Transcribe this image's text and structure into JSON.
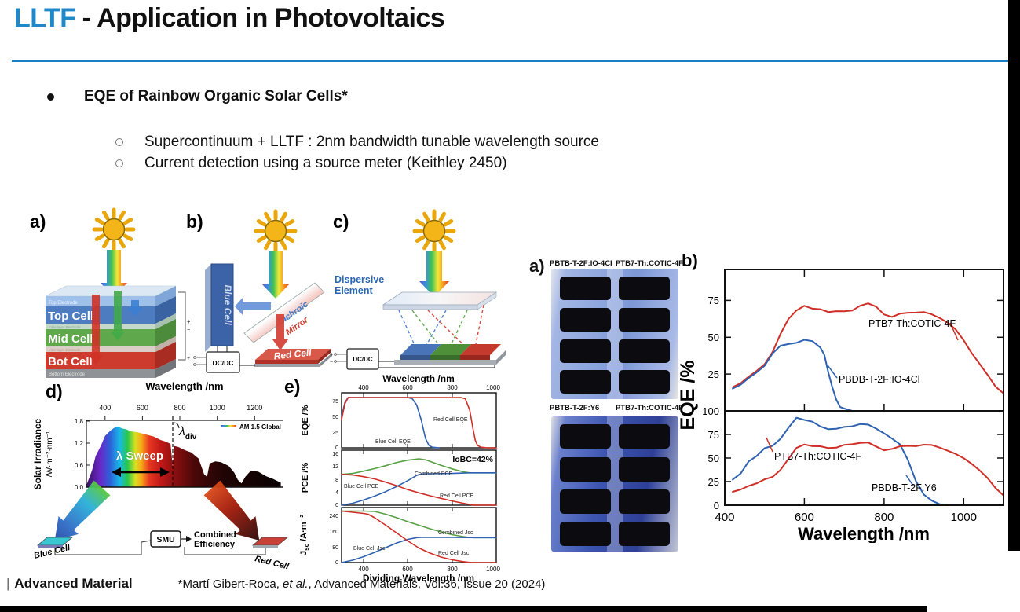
{
  "title": {
    "highlight": "LLTF",
    "rest": "- Application in Photovoltaics"
  },
  "bullets": {
    "main": "EQE of Rainbow Organic Solar Cells*",
    "sub1": "Supercontinuum + LLTF : 2nm bandwidth tunable wavelength source",
    "sub2": "Current detection using  a source meter (Keithley 2450)"
  },
  "fig_a": {
    "label": "a)",
    "layers": {
      "top_electrode": "Top Electrode",
      "top_cell": "Top Cell",
      "inter1": "Inter-layer Electrode",
      "mid_cell": "Mid Cell",
      "inter2": "Inter-layer Electrode",
      "bot_cell": "Bot Cell",
      "bottom_electrode": "Bottom Electrode"
    },
    "plus": "+",
    "minus": "−"
  },
  "fig_b": {
    "label": "b)",
    "blue_cell": "Blue Cell",
    "red_cell": "Red Cell",
    "dichroic": "Dichroic",
    "mirror": "Mirror",
    "dcdc": "DC/DC",
    "plus": "+",
    "minus": "−"
  },
  "fig_c": {
    "label": "c)",
    "dispersive_line1": "Dispersive",
    "dispersive_line2": "Element",
    "dcdc": "DC/DC",
    "plus": "+",
    "minus": "−"
  },
  "fig_d": {
    "label": "d)",
    "xlabel": "Wavelength /nm",
    "ylabel_line1": "Solar Irradiance",
    "ylabel_line2": "/W·m⁻²·nm⁻¹",
    "xticks": [
      "400",
      "600",
      "800",
      "1000",
      "1200"
    ],
    "yticks": [
      "1.8",
      "1.2",
      "0.6",
      "0.0"
    ],
    "legend": "AM 1.5 Global",
    "lambda": "λ",
    "div_sub": "div",
    "sweep": "λ Sweep",
    "smu": "SMU",
    "combined_line1": "Combined",
    "combined_line2": "Efficiency",
    "blue_cell": "Blue Cell",
    "red_cell": "Red Cell"
  },
  "fig_e": {
    "label": "e)",
    "top_xlabel": "Wavelength /nm",
    "bottom_xlabel": "Dividing Wavelength /nm",
    "xticks": [
      "400",
      "600",
      "800",
      "1000"
    ],
    "p1": {
      "ylabel": "EQE /%",
      "yticks": [
        "75",
        "50",
        "25",
        "0"
      ],
      "label_blue": "Blue Cell EQE",
      "label_red": "Red Cell EQE"
    },
    "p2": {
      "ylabel": "PCE /%",
      "yticks": [
        "16",
        "12",
        "8",
        "4",
        "0"
      ],
      "iobc": "IoBC=42%",
      "label_green": "Combined PCE",
      "label_blue": "Blue Cell PCE",
      "label_red": "Red Cell PCE"
    },
    "p3": {
      "ylabel_main": "J",
      "ylabel_sub": "sc",
      "ylabel_rest": " /A·m⁻²",
      "yticks": [
        "240",
        "160",
        "80",
        "0"
      ],
      "label_green": "Combined Jsc",
      "label_blue": "Blue Cell Jsc",
      "label_red": "Red Cell Jsc"
    }
  },
  "photos": {
    "label": "a)",
    "row1_left": "PBTB-T-2F:IO-4Cl",
    "row1_right": "PTB7-Th:COTIC-4F",
    "row2_left": "PBTB-T-2F:Y6",
    "row2_right": "PTB7-Th:COTIC-4F"
  },
  "eqe_chart": {
    "label": "b)",
    "ylabel": "EQE /%",
    "xlabel": "Wavelength /nm",
    "xticks": [
      "400",
      "600",
      "800",
      "1000"
    ],
    "yticks_top": [
      "75",
      "50",
      "25"
    ],
    "yticks_bottom": [
      "100",
      "75",
      "50",
      "25",
      "0"
    ],
    "label_top_red": "PTB7-Th:COTIC-4F",
    "label_top_blue": "PBDB-T-2F:IO-4Cl",
    "label_bottom_red": "PTB7-Th:COTIC-4F",
    "label_bottom_blue": "PBDB-T-2F:Y6"
  },
  "footer": {
    "pipe": "|",
    "brand": "Advanced Material",
    "cite_pre": "*Martí Gibert-Roca, ",
    "cite_etal": "et al.",
    "cite_post": ", Advanced Materials, Vol.36, Issue 20 (2024)"
  },
  "colors": {
    "accent": "#1f88c9",
    "curve_red": "#d02f27",
    "curve_blue": "#2f62b0",
    "curve_green": "#58a044"
  },
  "chart_data": [
    {
      "id": "eqe_top",
      "type": "line",
      "xlabel": "Wavelength /nm",
      "ylabel": "EQE /%",
      "xlim": [
        400,
        1100
      ],
      "ylim": [
        0,
        96
      ],
      "series": [
        {
          "name": "PTB7-Th:COTIC-4F",
          "color": "#d02f27",
          "x": [
            420,
            440,
            460,
            480,
            500,
            520,
            540,
            560,
            580,
            600,
            620,
            640,
            660,
            680,
            700,
            720,
            740,
            760,
            780,
            800,
            820,
            840,
            860,
            880,
            900,
            920,
            940,
            960,
            980,
            1000,
            1020,
            1040,
            1060,
            1080,
            1100
          ],
          "y": [
            16,
            19,
            23,
            27,
            32,
            40,
            52,
            63,
            69,
            71,
            69,
            70,
            68,
            67,
            67,
            69,
            72,
            72,
            70,
            66,
            64,
            65,
            66,
            67,
            67,
            65,
            63,
            60,
            55,
            48,
            40,
            32,
            24,
            17,
            13
          ]
        },
        {
          "name": "PBDB-T-2F:IO-4Cl",
          "color": "#2f62b0",
          "x": [
            420,
            440,
            460,
            480,
            500,
            520,
            540,
            560,
            580,
            600,
            620,
            640,
            650,
            660,
            670,
            680,
            690,
            700,
            720
          ],
          "y": [
            15,
            18,
            22,
            26,
            31,
            39,
            44,
            46,
            47,
            48,
            47,
            44,
            38,
            27,
            16,
            7,
            3,
            1,
            0
          ]
        }
      ]
    },
    {
      "id": "eqe_bottom",
      "type": "line",
      "xlabel": "Wavelength /nm",
      "ylabel": "EQE /%",
      "xlim": [
        400,
        1100
      ],
      "ylim": [
        0,
        105
      ],
      "series": [
        {
          "name": "PBDB-T-2F:Y6",
          "color": "#2f62b0",
          "x": [
            420,
            440,
            460,
            480,
            500,
            520,
            540,
            560,
            580,
            600,
            620,
            640,
            660,
            680,
            700,
            720,
            740,
            760,
            780,
            800,
            820,
            840,
            860,
            880,
            900,
            920,
            940,
            960,
            1000,
            1050,
            1100
          ],
          "y": [
            27,
            34,
            46,
            52,
            61,
            63,
            70,
            83,
            94,
            90,
            88,
            85,
            82,
            80,
            82,
            85,
            87,
            84,
            80,
            77,
            71,
            63,
            47,
            26,
            11,
            4,
            1,
            0,
            0,
            0,
            0
          ]
        },
        {
          "name": "PTB7-Th:COTIC-4F",
          "color": "#d02f27",
          "x": [
            420,
            440,
            460,
            480,
            500,
            520,
            540,
            560,
            580,
            600,
            620,
            640,
            660,
            680,
            700,
            720,
            740,
            760,
            780,
            800,
            820,
            840,
            860,
            880,
            900,
            920,
            940,
            960,
            980,
            1000,
            1020,
            1040,
            1060,
            1080,
            1100
          ],
          "y": [
            14,
            17,
            20,
            23,
            28,
            30,
            37,
            50,
            62,
            64,
            62,
            64,
            62,
            60,
            63,
            66,
            67,
            65,
            61,
            59,
            60,
            61,
            62,
            63,
            64,
            63,
            61,
            58,
            54,
            50,
            45,
            37,
            28,
            19,
            12
          ]
        }
      ]
    },
    {
      "id": "fig_e_eqe",
      "type": "line",
      "xlabel": "Dividing Wavelength /nm",
      "ylabel": "EQE /%",
      "xlim": [
        300,
        1000
      ],
      "ylim": [
        0,
        87.5
      ],
      "series": [
        {
          "name": "Blue Cell EQE",
          "color": "#2f62b0",
          "x": [
            300,
            315,
            330,
            380,
            450,
            520,
            600,
            620,
            640,
            660,
            680,
            695,
            710,
            740
          ],
          "y": [
            50,
            72,
            80,
            80,
            80,
            80,
            80,
            78,
            68,
            45,
            15,
            4,
            1,
            0
          ]
        },
        {
          "name": "Red Cell EQE",
          "color": "#d02f27",
          "x": [
            300,
            315,
            330,
            400,
            500,
            600,
            700,
            800,
            840,
            860,
            880,
            895,
            905,
            915,
            930,
            960,
            1000
          ],
          "y": [
            45,
            70,
            80,
            80,
            80,
            80,
            80,
            80,
            80,
            78,
            60,
            30,
            12,
            4,
            1,
            0,
            0
          ]
        }
      ]
    },
    {
      "id": "fig_e_pce",
      "type": "line",
      "xlabel": "Dividing Wavelength /nm",
      "ylabel": "PCE /%",
      "xlim": [
        300,
        1000
      ],
      "ylim": [
        0,
        16
      ],
      "annotation": "IoBC=42%",
      "series": [
        {
          "name": "Combined PCE",
          "color": "#58a044",
          "x": [
            300,
            350,
            400,
            450,
            500,
            550,
            600,
            650,
            680,
            700,
            750,
            800,
            850,
            880,
            900,
            1000
          ],
          "y": [
            9.5,
            9.8,
            10.5,
            11.3,
            12.2,
            13.2,
            13.9,
            14.3,
            14.0,
            13.5,
            12.3,
            11.2,
            10.3,
            10.0,
            10.0,
            10.0
          ]
        },
        {
          "name": "Blue Cell PCE",
          "color": "#2f62b0",
          "x": [
            300,
            350,
            400,
            450,
            500,
            550,
            600,
            640,
            660,
            680,
            700,
            800,
            880,
            1000
          ],
          "y": [
            0,
            0.6,
            1.6,
            2.8,
            4.2,
            5.8,
            7.6,
            9.2,
            9.6,
            9.7,
            9.7,
            9.8,
            10.0,
            10.0
          ]
        },
        {
          "name": "Red Cell PCE",
          "color": "#d02f27",
          "x": [
            300,
            350,
            400,
            450,
            500,
            550,
            600,
            650,
            700,
            750,
            800,
            850,
            880,
            900,
            1000
          ],
          "y": [
            9.5,
            9.3,
            8.8,
            8.1,
            7.1,
            6.0,
            4.8,
            3.8,
            2.9,
            2.1,
            1.3,
            0.6,
            0.2,
            0,
            0
          ]
        }
      ]
    },
    {
      "id": "fig_e_jsc",
      "type": "line",
      "xlabel": "Dividing Wavelength /nm",
      "ylabel": "Jsc /A·m⁻²",
      "xlim": [
        300,
        1000
      ],
      "ylim": [
        0,
        280
      ],
      "series": [
        {
          "name": "Combined Jsc",
          "color": "#58a044",
          "x": [
            300,
            400,
            450,
            500,
            550,
            600,
            650,
            700,
            750,
            800,
            850,
            880,
            900,
            1000
          ],
          "y": [
            262,
            262,
            260,
            246,
            228,
            208,
            190,
            172,
            156,
            142,
            132,
            128,
            127,
            127
          ]
        },
        {
          "name": "Blue Cell Jsc",
          "color": "#2f62b0",
          "x": [
            300,
            350,
            400,
            450,
            500,
            550,
            600,
            640,
            660,
            700,
            800,
            900,
            1000
          ],
          "y": [
            0,
            12,
            30,
            52,
            76,
            100,
            118,
            127,
            128,
            128,
            128,
            127,
            127
          ]
        },
        {
          "name": "Red Cell Jsc",
          "color": "#d02f27",
          "x": [
            300,
            400,
            420,
            450,
            500,
            550,
            600,
            650,
            700,
            750,
            800,
            850,
            880,
            900,
            1000
          ],
          "y": [
            262,
            250,
            246,
            228,
            190,
            150,
            110,
            74,
            48,
            28,
            14,
            5,
            1,
            0,
            0
          ]
        }
      ]
    },
    {
      "id": "fig_d_spectrum",
      "type": "area",
      "xlabel": "Wavelength /nm",
      "ylabel": "Solar Irradiance /W·m⁻²·nm⁻¹",
      "xlim": [
        300,
        1350
      ],
      "ylim": [
        0,
        1.8
      ],
      "legend": "AM 1.5 Global",
      "series": [
        {
          "name": "AM 1.5 Global",
          "x": [
            300,
            330,
            350,
            380,
            400,
            430,
            450,
            470,
            490,
            510,
            540,
            570,
            600,
            630,
            660,
            690,
            700,
            720,
            750,
            762,
            770,
            790,
            810,
            830,
            860,
            900,
            930,
            945,
            960,
            990,
            1020,
            1060,
            1090,
            1110,
            1130,
            1150,
            1180,
            1220,
            1260,
            1300,
            1340
          ],
          "y": [
            0.05,
            0.45,
            0.85,
            1.15,
            1.4,
            1.55,
            1.62,
            1.65,
            1.6,
            1.58,
            1.52,
            1.5,
            1.46,
            1.42,
            1.38,
            1.3,
            1.28,
            1.25,
            1.18,
            0.55,
            1.12,
            1.1,
            1.05,
            1.0,
            0.95,
            0.78,
            0.35,
            0.28,
            0.65,
            0.7,
            0.68,
            0.58,
            0.4,
            0.2,
            0.1,
            0.28,
            0.45,
            0.42,
            0.3,
            0.22,
            0.12
          ]
        }
      ]
    }
  ]
}
